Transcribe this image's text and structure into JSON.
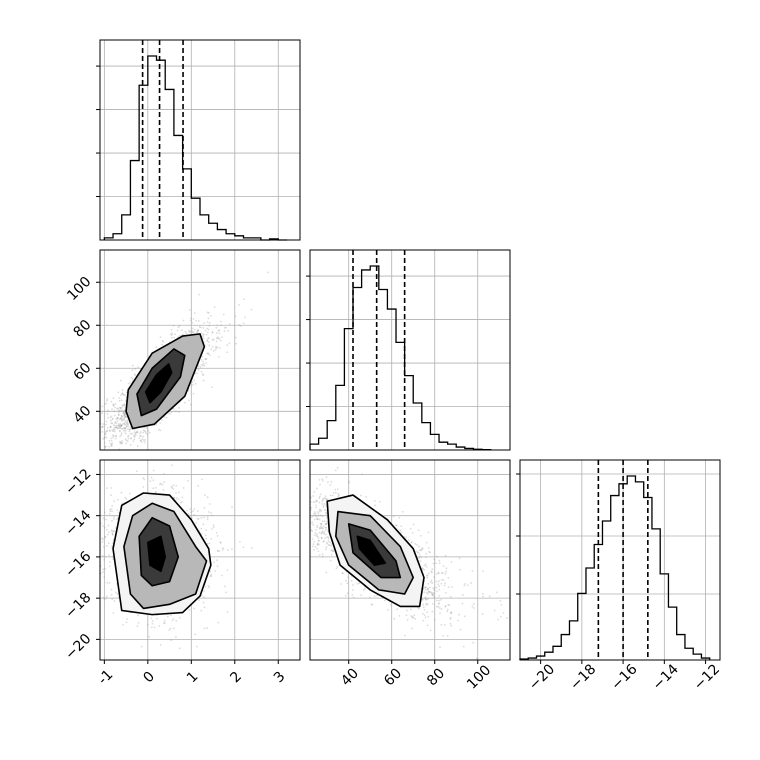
{
  "chart_data": {
    "type": "corner",
    "parameters": [
      {
        "range": [
          -1.1,
          3.5
        ],
        "ticks": [
          -1,
          0,
          1,
          2,
          3
        ],
        "tick_labels": [
          "-1",
          "0",
          "1",
          "2",
          "3"
        ],
        "quantiles": [
          -0.12,
          0.27,
          0.81
        ],
        "hist_bins": [
          -1.0,
          -0.8,
          -0.6,
          -0.4,
          -0.2,
          0.0,
          0.2,
          0.4,
          0.6,
          0.8,
          1.0,
          1.2,
          1.4,
          1.6,
          1.8,
          2.0,
          2.2,
          2.4,
          2.6,
          2.8,
          3.0,
          3.2
        ],
        "hist_counts": [
          0.01,
          0.03,
          0.12,
          0.38,
          0.74,
          0.88,
          0.86,
          0.72,
          0.5,
          0.34,
          0.2,
          0.12,
          0.08,
          0.05,
          0.03,
          0.02,
          0.01,
          0.01,
          0.0,
          0.005,
          0.0
        ]
      },
      {
        "range": [
          22,
          115
        ],
        "ticks": [
          40,
          60,
          80,
          100
        ],
        "tick_labels": [
          "40",
          "60",
          "80",
          "100"
        ],
        "quantiles": [
          42,
          53,
          66
        ],
        "hist_bins": [
          22,
          26,
          30,
          34,
          38,
          42,
          46,
          50,
          54,
          58,
          62,
          66,
          70,
          74,
          78,
          82,
          86,
          90,
          94,
          98,
          102,
          106
        ],
        "hist_counts": [
          0.03,
          0.06,
          0.15,
          0.33,
          0.62,
          0.83,
          0.92,
          0.94,
          0.82,
          0.72,
          0.55,
          0.38,
          0.24,
          0.14,
          0.08,
          0.04,
          0.03,
          0.015,
          0.008,
          0.004,
          0.002
        ]
      },
      {
        "range": [
          -21.0,
          -11.3
        ],
        "ticks": [
          -20,
          -18,
          -16,
          -14,
          -12
        ],
        "tick_labels": [
          "−20",
          "−18",
          "−16",
          "−14",
          "−12"
        ],
        "quantiles": [
          -17.2,
          -16.0,
          -14.8
        ],
        "hist_bins": [
          -21.0,
          -20.6,
          -20.2,
          -19.8,
          -19.4,
          -19.0,
          -18.6,
          -18.2,
          -17.8,
          -17.4,
          -17.0,
          -16.6,
          -16.2,
          -15.8,
          -15.4,
          -15.0,
          -14.6,
          -14.2,
          -13.8,
          -13.4,
          -13.0,
          -12.6,
          -12.2,
          -11.8
        ],
        "hist_counts": [
          0.005,
          0.01,
          0.02,
          0.04,
          0.07,
          0.13,
          0.2,
          0.34,
          0.47,
          0.59,
          0.71,
          0.84,
          0.9,
          0.94,
          0.91,
          0.83,
          0.67,
          0.44,
          0.27,
          0.13,
          0.06,
          0.03,
          0.01
        ]
      }
    ],
    "pairs": [
      {
        "i": 1,
        "j": 0,
        "mean": [
          0.25,
          52
        ],
        "std": [
          0.45,
          12.5
        ],
        "rho": 0.8,
        "contours": [
          [
            [
              0.05,
              44
            ],
            [
              0.3,
              49
            ],
            [
              0.55,
              58
            ],
            [
              0.48,
              62
            ],
            [
              0.2,
              57
            ],
            [
              -0.05,
              49
            ]
          ],
          [
            [
              -0.15,
              38
            ],
            [
              0.2,
              41
            ],
            [
              0.75,
              56
            ],
            [
              0.85,
              66
            ],
            [
              0.6,
              69
            ],
            [
              0.1,
              60
            ],
            [
              -0.25,
              48
            ]
          ],
          [
            [
              -0.35,
              32
            ],
            [
              0.15,
              34
            ],
            [
              0.85,
              47
            ],
            [
              1.3,
              70
            ],
            [
              1.2,
              76
            ],
            [
              0.8,
              75
            ],
            [
              0.1,
              67
            ],
            [
              -0.45,
              50
            ],
            [
              -0.5,
              40
            ]
          ]
        ]
      },
      {
        "i": 2,
        "j": 0,
        "mean": [
          0.2,
          -15.8
        ],
        "std": [
          0.45,
          1.3
        ],
        "rho": -0.05,
        "contours": [
          [
            [
              0.05,
              -16.4
            ],
            [
              0.0,
              -15.3
            ],
            [
              0.3,
              -15.0
            ],
            [
              0.4,
              -16.0
            ],
            [
              0.3,
              -16.7
            ]
          ],
          [
            [
              -0.15,
              -16.9
            ],
            [
              -0.2,
              -15.0
            ],
            [
              0.1,
              -14.1
            ],
            [
              0.5,
              -14.5
            ],
            [
              0.7,
              -16.0
            ],
            [
              0.5,
              -17.2
            ],
            [
              0.1,
              -17.4
            ]
          ],
          [
            [
              -0.4,
              -17.8
            ],
            [
              -0.55,
              -15.5
            ],
            [
              -0.35,
              -14.0
            ],
            [
              0.1,
              -13.4
            ],
            [
              0.6,
              -13.8
            ],
            [
              1.1,
              -15.5
            ],
            [
              1.35,
              -16.2
            ],
            [
              1.1,
              -17.8
            ],
            [
              0.5,
              -18.3
            ],
            [
              -0.1,
              -18.5
            ]
          ],
          [
            [
              -0.6,
              -18.6
            ],
            [
              -0.8,
              -15.6
            ],
            [
              -0.6,
              -13.5
            ],
            [
              -0.1,
              -12.9
            ],
            [
              0.5,
              -13.0
            ],
            [
              1.0,
              -14.2
            ],
            [
              1.4,
              -15.6
            ],
            [
              1.45,
              -16.4
            ],
            [
              1.2,
              -17.9
            ],
            [
              0.8,
              -18.7
            ],
            [
              0.1,
              -18.8
            ]
          ]
        ]
      },
      {
        "i": 2,
        "j": 1,
        "mean": [
          52,
          -15.8
        ],
        "std": [
          12.5,
          1.3
        ],
        "rho": -0.72,
        "contours": [
          [
            [
              44,
              -15.0
            ],
            [
              50,
              -15.2
            ],
            [
              57,
              -16.3
            ],
            [
              52,
              -16.4
            ],
            [
              45,
              -15.6
            ]
          ],
          [
            [
              40,
              -14.4
            ],
            [
              50,
              -14.7
            ],
            [
              62,
              -16.2
            ],
            [
              64,
              -17.0
            ],
            [
              55,
              -17.0
            ],
            [
              42,
              -15.8
            ]
          ],
          [
            [
              35,
              -13.8
            ],
            [
              50,
              -14.0
            ],
            [
              64,
              -15.5
            ],
            [
              70,
              -17.0
            ],
            [
              66,
              -17.8
            ],
            [
              54,
              -17.6
            ],
            [
              40,
              -16.4
            ],
            [
              34,
              -15.0
            ]
          ],
          [
            [
              30,
              -13.3
            ],
            [
              42,
              -13.0
            ],
            [
              58,
              -14.2
            ],
            [
              70,
              -15.6
            ],
            [
              75,
              -17.0
            ],
            [
              73,
              -18.4
            ],
            [
              64,
              -18.4
            ],
            [
              50,
              -17.6
            ],
            [
              36,
              -16.4
            ],
            [
              31,
              -14.8
            ]
          ]
        ]
      }
    ]
  }
}
